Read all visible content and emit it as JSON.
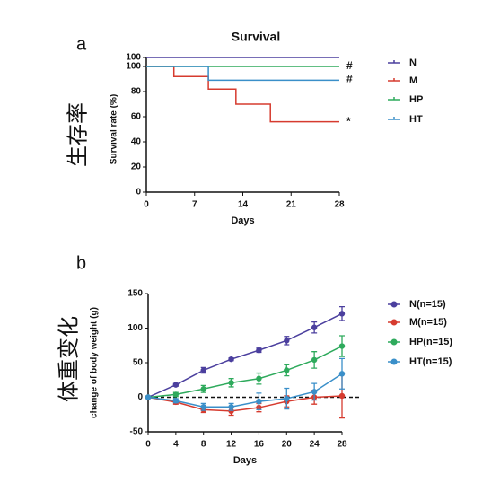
{
  "chart_data": [
    {
      "type": "step",
      "panel": "a",
      "side_label": "生存率",
      "title": "Survival",
      "x_label": "Days",
      "y_label": "Survival rate (%)",
      "xlim": [
        0,
        28
      ],
      "xticks": [
        0,
        7,
        14,
        21,
        28
      ],
      "ylim": [
        0,
        100
      ],
      "yticks": [
        0,
        20,
        40,
        60,
        80,
        100
      ],
      "series": [
        {
          "name": "N",
          "color": "#4b3f9e",
          "x": [
            0,
            28
          ],
          "values": [
            100,
            100
          ]
        },
        {
          "name": "M",
          "color": "#d63b2f",
          "x": [
            0,
            4,
            9,
            13,
            18,
            28
          ],
          "values": [
            100,
            92,
            82,
            70,
            56,
            56
          ],
          "annotation": "*"
        },
        {
          "name": "HP",
          "color": "#2eaa5c",
          "x": [
            0,
            28
          ],
          "values": [
            100,
            100
          ],
          "annotation": "#"
        },
        {
          "name": "HT",
          "color": "#3a8fc9",
          "x": [
            0,
            9,
            28
          ],
          "values": [
            100,
            89,
            89
          ],
          "annotation": "#"
        }
      ]
    },
    {
      "type": "line",
      "panel": "b",
      "side_label": "体重变化",
      "x_label": "Days",
      "y_label": "change of body weight (g)",
      "xlim": [
        0,
        28
      ],
      "xticks": [
        0,
        4,
        8,
        12,
        16,
        20,
        24,
        28
      ],
      "ylim": [
        -50,
        150
      ],
      "yticks": [
        -50,
        0,
        50,
        100,
        150
      ],
      "x": [
        0,
        4,
        8,
        12,
        16,
        20,
        24,
        28
      ],
      "series": [
        {
          "name": "N(n=15)",
          "color": "#4b3f9e",
          "values": [
            0,
            18,
            39,
            55,
            68,
            82,
            101,
            121
          ],
          "errors": [
            0,
            2,
            4,
            2,
            3,
            6,
            8,
            10
          ]
        },
        {
          "name": "M(n=15)",
          "color": "#d63b2f",
          "values": [
            0,
            -7,
            -18,
            -20,
            -15,
            -6,
            0,
            2
          ],
          "errors": [
            0,
            3,
            4,
            6,
            6,
            8,
            10,
            32
          ]
        },
        {
          "name": "HP(n=15)",
          "color": "#2eaa5c",
          "values": [
            0,
            4,
            12,
            21,
            27,
            39,
            54,
            74
          ],
          "errors": [
            0,
            3,
            5,
            6,
            8,
            8,
            12,
            15
          ]
        },
        {
          "name": "HT(n=15)",
          "color": "#3a8fc9",
          "values": [
            0,
            -5,
            -14,
            -14,
            -6,
            -2,
            8,
            34
          ],
          "errors": [
            0,
            3,
            5,
            5,
            12,
            15,
            12,
            22
          ]
        }
      ]
    }
  ]
}
